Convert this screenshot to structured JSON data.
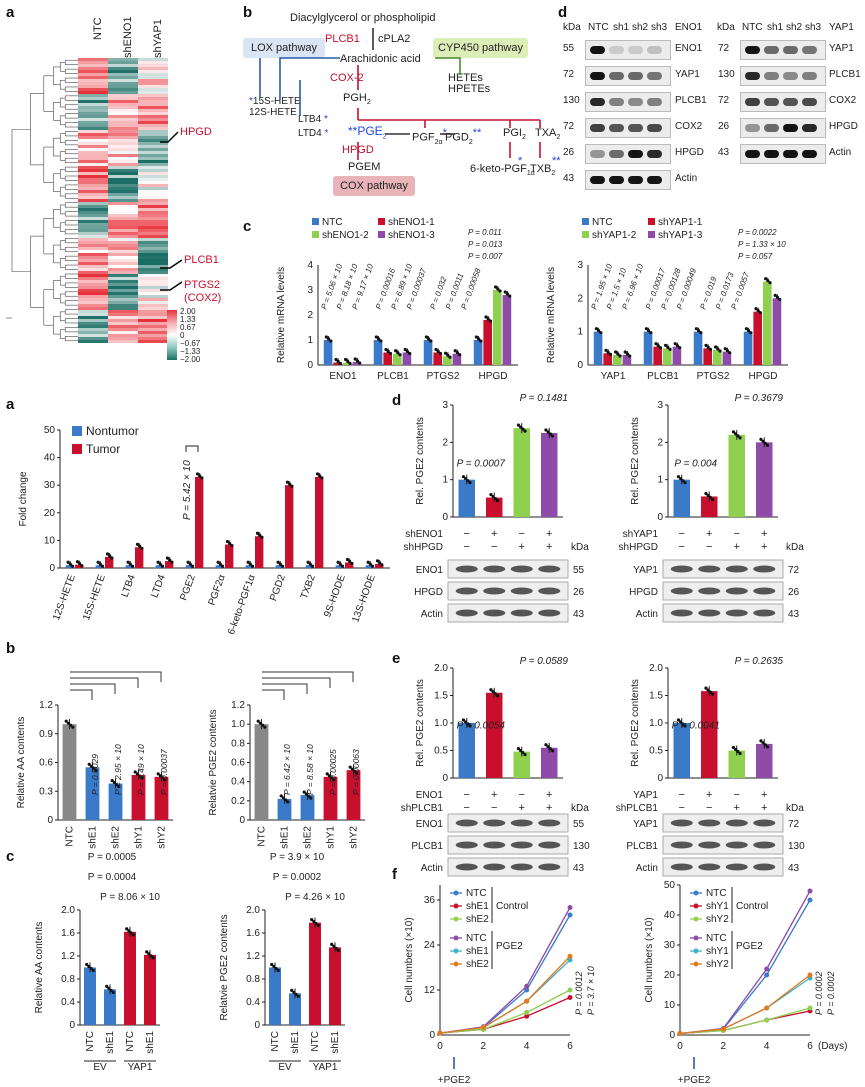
{
  "panels": [
    "a",
    "b",
    "d",
    "c",
    "a",
    "b",
    "c",
    "d",
    "e",
    "f"
  ],
  "heatmap": {
    "columns": [
      "NTC",
      "shENO1",
      "shYAP1"
    ],
    "genes": [
      "HPGD",
      "PLCB1",
      "PTGS2",
      "(COX2)"
    ],
    "scale": [
      "2.00",
      "1.33",
      "0.67",
      "0",
      "−0.67",
      "−1.33",
      "−2.00"
    ]
  },
  "pathway": {
    "top": "Diacylglycerol or phospholipid",
    "plcb1": "PLCB1",
    "cpla2": "cPLA2",
    "aa": "Arachidonic acid",
    "lox": "LOX pathway",
    "cyp": "CYP450 pathway",
    "cox2": "COX-2",
    "pgh2": "PGH",
    "hete15": "15S-HETE",
    "hete12": "12S-HETE",
    "ltb4": "LTB4",
    "ltd4": "LTD4",
    "hetes": "HETEs",
    "hpetes": "HPETEs",
    "pge2": "PGE",
    "pgf2a": "PGF",
    "pgd2": "PGD",
    "pgi2": "PGI",
    "txa2": "TXA",
    "hpgd": "HPGD",
    "pgem": "PGEM",
    "keto": "6-keto-PGF",
    "txb2": "TXB",
    "cox": "COX pathway"
  },
  "blot_d_top": {
    "kda": "kDa",
    "lanes_left": [
      "NTC",
      "sh1",
      "sh2",
      "sh3"
    ],
    "left_label": "ENO1",
    "left_rows": [
      {
        "name": "ENO1",
        "kda": "55"
      },
      {
        "name": "YAP1",
        "kda": "72"
      },
      {
        "name": "PLCB1",
        "kda": "130"
      },
      {
        "name": "COX2",
        "kda": "72"
      },
      {
        "name": "HPGD",
        "kda": "26"
      },
      {
        "name": "Actin",
        "kda": "43"
      }
    ],
    "lanes_right": [
      "NTC",
      "sh1",
      "sh2",
      "sh3"
    ],
    "right_label": "YAP1",
    "right_rows": [
      {
        "name": "YAP1",
        "kda": "72"
      },
      {
        "name": "PLCB1",
        "kda": "130"
      },
      {
        "name": "COX2",
        "kda": "72"
      },
      {
        "name": "HPGD",
        "kda": "26"
      },
      {
        "name": "Actin",
        "kda": "43"
      }
    ]
  },
  "chart_data": [
    {
      "id": "c-top-left",
      "type": "bar",
      "ylabel": "Relative mRNA levels",
      "categories": [
        "ENO1",
        "PLCB1",
        "PTGS2",
        "HPGD"
      ],
      "legend": [
        "NTC",
        "shENO1-1",
        "shENO1-2",
        "shENO1-3"
      ],
      "colors": [
        "#3a7ac9",
        "#c8102e",
        "#8fd14f",
        "#8e4ca8"
      ],
      "series": [
        {
          "name": "NTC",
          "values": [
            1,
            1,
            1,
            1
          ]
        },
        {
          "name": "shENO1-1",
          "values": [
            0.1,
            0.5,
            0.5,
            1.8
          ]
        },
        {
          "name": "shENO1-2",
          "values": [
            0.1,
            0.45,
            0.35,
            3.0
          ]
        },
        {
          "name": "shENO1-3",
          "values": [
            0.12,
            0.5,
            0.45,
            2.8
          ]
        }
      ],
      "ylim": [
        0,
        4
      ],
      "pvalues": [
        "P = 5.06 × 10",
        "P = 8.18 × 10",
        "P = 9.17 × 10",
        "P = 0.00016",
        "P = 6.89 × 10",
        "P = 0.00037",
        "P = 0.032",
        "P = 0.0011",
        "P = 0.00058",
        "P = 0.007",
        "P = 0.013",
        "P = 0.011"
      ]
    },
    {
      "id": "c-top-right",
      "type": "bar",
      "ylabel": "Relative mRNA levels",
      "categories": [
        "YAP1",
        "PLCB1",
        "PTGS2",
        "HPGD"
      ],
      "legend": [
        "NTC",
        "shYAP1-1",
        "shYAP1-2",
        "shYAP1-3"
      ],
      "colors": [
        "#3a7ac9",
        "#c8102e",
        "#8fd14f",
        "#8e4ca8"
      ],
      "series": [
        {
          "name": "NTC",
          "values": [
            1,
            1,
            1,
            1
          ]
        },
        {
          "name": "shYAP1-1",
          "values": [
            0.35,
            0.55,
            0.5,
            1.6
          ]
        },
        {
          "name": "shYAP1-2",
          "values": [
            0.3,
            0.5,
            0.45,
            2.5
          ]
        },
        {
          "name": "shYAP1-3",
          "values": [
            0.3,
            0.55,
            0.4,
            2.0
          ]
        }
      ],
      "ylim": [
        0,
        3
      ],
      "pvalues": [
        "P = 1.95 × 10",
        "P = 1.5 × 10",
        "P = 6.96 × 10",
        "P = 0.00017",
        "P = 0.00128",
        "P = 0.00049",
        "P = 0.019",
        "P = 0.0173",
        "P = 0.0057",
        "P = 0.057",
        "P = 1.33 × 10",
        "P = 0.0022"
      ]
    },
    {
      "id": "a-lower",
      "type": "bar",
      "ylabel": "Fold change",
      "categories": [
        "12S-HETE",
        "15S-HETE",
        "LTB4",
        "LTD4",
        "PGE2",
        "PGF2α",
        "6-keto-PGF1α",
        "PGD2",
        "TXB2",
        "9S-HODE",
        "13S-HODE"
      ],
      "legend": [
        "Nontumor",
        "Tumor"
      ],
      "colors": [
        "#3a7ac9",
        "#c8102e"
      ],
      "series": [
        {
          "name": "Nontumor",
          "values": [
            1,
            1,
            1,
            1,
            1,
            1,
            1,
            1,
            1,
            1,
            1
          ]
        },
        {
          "name": "Tumor",
          "values": [
            1.2,
            4,
            7.5,
            2.5,
            33,
            8.5,
            11.5,
            30,
            33,
            2,
            1.5
          ]
        }
      ],
      "ylim": [
        0,
        50
      ],
      "yticks": [
        "0",
        "10",
        "20",
        "30",
        "40",
        "50"
      ],
      "pvalue": "P = 5.42 × 10"
    },
    {
      "id": "b-AA",
      "type": "bar",
      "ylabel": "Relative AA contents",
      "categories": [
        "NTC",
        "shE1",
        "shE2",
        "shY1",
        "shY2"
      ],
      "values": [
        1.0,
        0.55,
        0.38,
        0.47,
        0.45
      ],
      "colors": [
        "#888888",
        "#3a7ac9",
        "#3a7ac9",
        "#c8102e",
        "#c8102e"
      ],
      "ylim": [
        0,
        1.2
      ],
      "yticks": [
        "0",
        "0.3",
        "0.6",
        "0.9",
        "1.2"
      ],
      "pvalues": [
        "P = 0.0029",
        "P = 2.95 × 10",
        "P = 5.49 × 10",
        "P = 0.00037"
      ]
    },
    {
      "id": "b-PGE2",
      "type": "bar",
      "ylabel": "Relatvie PGE2 contents",
      "categories": [
        "NTC",
        "shE1",
        "shE2",
        "shY1",
        "shY2"
      ],
      "values": [
        1.0,
        0.22,
        0.26,
        0.45,
        0.52
      ],
      "colors": [
        "#888888",
        "#3a7ac9",
        "#3a7ac9",
        "#c8102e",
        "#c8102e"
      ],
      "ylim": [
        0,
        1.2
      ],
      "yticks": [
        "0",
        "0.2",
        "0.4",
        "0.6",
        "0.8",
        "1.0",
        "1.2"
      ],
      "pvalues": [
        "P = 6.42 × 10",
        "P = 8.58 × 10",
        "P = 0.00025",
        "P = 0.00063"
      ]
    },
    {
      "id": "c-AA",
      "type": "bar",
      "ylabel": "Relative AA contents",
      "categories": [
        "NTC",
        "shE1",
        "NTC",
        "shE1"
      ],
      "groups": [
        "EV",
        "YAP1"
      ],
      "values": [
        1.0,
        0.62,
        1.62,
        1.22
      ],
      "colors": [
        "#3a7ac9",
        "#3a7ac9",
        "#c8102e",
        "#c8102e"
      ],
      "ylim": [
        0,
        2.0
      ],
      "yticks": [
        "0",
        "0.4",
        "0.8",
        "1.2",
        "1.6",
        "2.0"
      ],
      "pvalues": [
        "P = 0.0005",
        "P = 0.0004",
        "P = 8.06 × 10"
      ]
    },
    {
      "id": "c-PGE2",
      "type": "bar",
      "ylabel": "Relatvie PGE2 contents",
      "categories": [
        "NTC",
        "shE1",
        "NTC",
        "shE1"
      ],
      "groups": [
        "EV",
        "YAP1"
      ],
      "values": [
        1.0,
        0.55,
        1.78,
        1.35
      ],
      "colors": [
        "#3a7ac9",
        "#3a7ac9",
        "#c8102e",
        "#c8102e"
      ],
      "ylim": [
        0,
        2.0
      ],
      "yticks": [
        "0",
        "0.4",
        "0.8",
        "1.2",
        "1.6",
        "2.0"
      ],
      "pvalues": [
        "P = 3.9 × 10",
        "P = 0.0002",
        "P = 4.26 × 10"
      ]
    },
    {
      "id": "d-left",
      "type": "bar",
      "ylabel": "Rel. PGE2 contents",
      "categories": [
        "-/-",
        "+/-",
        "-/+",
        "+/+"
      ],
      "values": [
        1.0,
        0.52,
        2.38,
        2.25
      ],
      "colors": [
        "#3a7ac9",
        "#c8102e",
        "#8fd14f",
        "#8e4ca8"
      ],
      "ylim": [
        0,
        3
      ],
      "yticks": [
        "0",
        "1",
        "2",
        "3"
      ],
      "pvalues": [
        "P = 0.0007",
        "P = 0.1481"
      ]
    },
    {
      "id": "d-right",
      "type": "bar",
      "ylabel": "Rel. PGE2 contents",
      "categories": [
        "-/-",
        "+/-",
        "-/+",
        "+/+"
      ],
      "values": [
        1.0,
        0.55,
        2.2,
        2.0
      ],
      "colors": [
        "#3a7ac9",
        "#c8102e",
        "#8fd14f",
        "#8e4ca8"
      ],
      "ylim": [
        0,
        3
      ],
      "yticks": [
        "0",
        "1",
        "2",
        "3"
      ],
      "pvalues": [
        "P = 0.004",
        "P = 0.3679"
      ]
    },
    {
      "id": "e-left",
      "type": "bar",
      "ylabel": "Rel. PGE2 contents",
      "categories": [
        "-/-",
        "+/-",
        "-/+",
        "+/+"
      ],
      "values": [
        1.0,
        1.55,
        0.48,
        0.55
      ],
      "colors": [
        "#3a7ac9",
        "#c8102e",
        "#8fd14f",
        "#8e4ca8"
      ],
      "ylim": [
        0,
        2.0
      ],
      "yticks": [
        "0",
        "0.5",
        "1.0",
        "1.5",
        "2.0"
      ],
      "pvalues": [
        "P = 0.0054",
        "P = 0.0589"
      ]
    },
    {
      "id": "e-right",
      "type": "bar",
      "ylabel": "Rel. PGE2 contents",
      "categories": [
        "-/-",
        "+/-",
        "-/+",
        "+/+"
      ],
      "values": [
        1.0,
        1.58,
        0.5,
        0.62
      ],
      "colors": [
        "#3a7ac9",
        "#c8102e",
        "#8fd14f",
        "#8e4ca8"
      ],
      "ylim": [
        0,
        2.0
      ],
      "yticks": [
        "0",
        "0.5",
        "1.0",
        "1.5",
        "2.0"
      ],
      "pvalues": [
        "P = 0.0041",
        "P = 0.2635"
      ]
    },
    {
      "id": "f-left",
      "type": "line",
      "ylabel": "Cell numbers (×10)",
      "x": [
        0,
        2,
        4,
        6
      ],
      "xticks": [
        "0",
        "2",
        "4",
        "6"
      ],
      "series": [
        {
          "name": "NTC",
          "color": "#3a7ac9",
          "values": [
            0.5,
            2,
            12,
            32
          ]
        },
        {
          "name": "shE1",
          "color": "#c8102e",
          "values": [
            0.5,
            1.5,
            5,
            10
          ]
        },
        {
          "name": "shE2",
          "color": "#8fd14f",
          "values": [
            0.5,
            1.5,
            6,
            12
          ]
        },
        {
          "name": "NTC",
          "color": "#8e4ca8",
          "values": [
            0.5,
            2.2,
            13,
            34
          ]
        },
        {
          "name": "shE1",
          "color": "#3bb0c9",
          "values": [
            0.5,
            2,
            9,
            20
          ]
        },
        {
          "name": "shE2",
          "color": "#e07a1f",
          "values": [
            0.5,
            2,
            9,
            21
          ]
        }
      ],
      "ylim": [
        0,
        40
      ],
      "yticks": [
        "0",
        "12",
        "24",
        "36"
      ],
      "groups": [
        "Control",
        "PGE2"
      ],
      "pvalues": [
        "P = 0.0012",
        "P = 3.7 × 10"
      ],
      "annot": "+PGE2"
    },
    {
      "id": "f-right",
      "type": "line",
      "ylabel": "Cell numbers (×10)",
      "x": [
        0,
        2,
        4,
        6
      ],
      "xticks": [
        "0",
        "2",
        "4",
        "6"
      ],
      "xunit": "(Days)",
      "series": [
        {
          "name": "NTC",
          "color": "#3a7ac9",
          "values": [
            0.5,
            2,
            20,
            45
          ]
        },
        {
          "name": "shY1",
          "color": "#c8102e",
          "values": [
            0.5,
            1.5,
            5,
            8
          ]
        },
        {
          "name": "shY2",
          "color": "#8fd14f",
          "values": [
            0.5,
            1.5,
            5,
            9
          ]
        },
        {
          "name": "NTC",
          "color": "#8e4ca8",
          "values": [
            0.5,
            2.2,
            22,
            48
          ]
        },
        {
          "name": "shY1",
          "color": "#3bb0c9",
          "values": [
            0.5,
            2,
            9,
            19
          ]
        },
        {
          "name": "shY2",
          "color": "#e07a1f",
          "values": [
            0.5,
            2,
            9,
            20
          ]
        }
      ],
      "ylim": [
        0,
        50
      ],
      "yticks": [
        "0",
        "10",
        "20",
        "30",
        "40",
        "50"
      ],
      "groups": [
        "Control",
        "PGE2"
      ],
      "pvalues": [
        "P = 0.0002",
        "P = 0.0002"
      ],
      "annot": "+PGE2"
    }
  ],
  "blots_d": {
    "left": {
      "row1": "shENO1",
      "row2": "shHPGD",
      "kda": "kDa",
      "blots": [
        {
          "name": "ENO1",
          "kda": "55"
        },
        {
          "name": "HPGD",
          "kda": "26"
        },
        {
          "name": "Actin",
          "kda": "43"
        }
      ]
    },
    "right": {
      "row1": "shYAP1",
      "row2": "shHPGD",
      "kda": "kDa",
      "blots": [
        {
          "name": "YAP1",
          "kda": "72"
        },
        {
          "name": "HPGD",
          "kda": "26"
        },
        {
          "name": "Actin",
          "kda": "43"
        }
      ]
    }
  },
  "blots_e": {
    "left": {
      "row1": "ENO1",
      "row2": "shPLCB1",
      "kda": "kDa",
      "blots": [
        {
          "name": "ENO1",
          "kda": "55"
        },
        {
          "name": "PLCB1",
          "kda": "130"
        },
        {
          "name": "Actin",
          "kda": "43"
        }
      ]
    },
    "right": {
      "row1": "YAP1",
      "row2": "shPLCB1",
      "kda": "kDa",
      "blots": [
        {
          "name": "YAP1",
          "kda": "72"
        },
        {
          "name": "PLCB1",
          "kda": "130"
        },
        {
          "name": "Actin",
          "kda": "43"
        }
      ]
    }
  },
  "signs": {
    "minus": "−",
    "plus": "+"
  },
  "c_groups": {
    "ev": "EV",
    "yap1": "YAP1"
  }
}
